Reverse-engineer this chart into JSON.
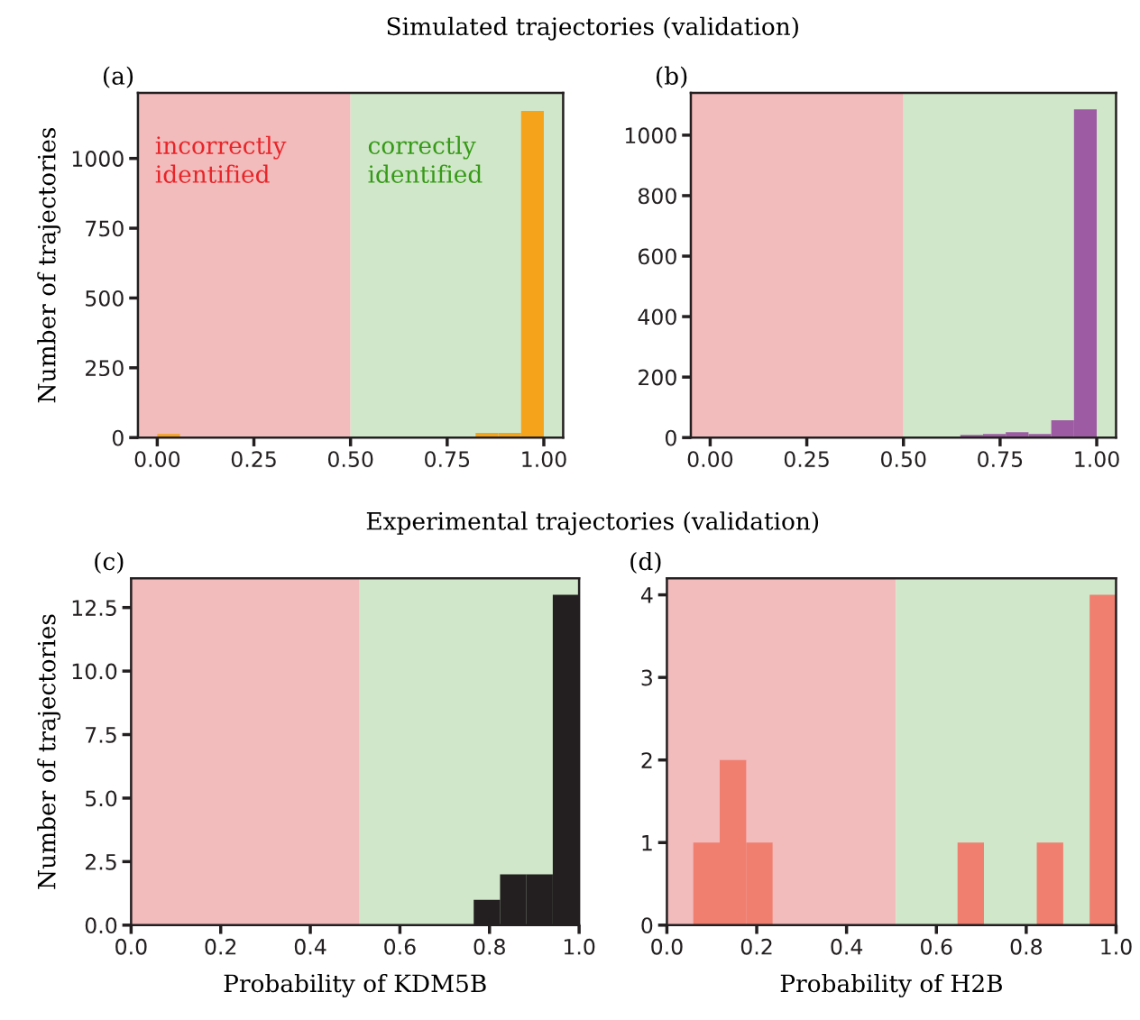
{
  "chart_data": [
    {
      "type": "histogram",
      "title": "Simulated trajectories (validation)",
      "subtitle": "(a)",
      "ylabel": "Number of trajectories",
      "bins": [
        0,
        0.0588,
        0.1176,
        0.1765,
        0.2353,
        0.2941,
        0.3529,
        0.4118,
        0.4706,
        0.5294,
        0.5882,
        0.6471,
        0.7059,
        0.7647,
        0.8235,
        0.8824,
        0.9412,
        1
      ],
      "values": [
        13,
        2,
        0,
        0,
        0,
        0,
        0,
        2,
        2,
        0,
        0,
        0,
        0,
        2,
        17,
        17,
        1170
      ],
      "color": "#f5a31b",
      "xlim": [
        -0.05,
        1.05
      ],
      "xticks": [
        {
          "value": 0,
          "label": "0.00"
        },
        {
          "value": 0.25,
          "label": "0.25"
        },
        {
          "value": 0.5,
          "label": "0.50"
        },
        {
          "value": 0.75,
          "label": "0.75"
        },
        {
          "value": 1,
          "label": "1.00"
        }
      ],
      "ylim": [
        0,
        1235
      ],
      "yticks": [
        0,
        250,
        500,
        750,
        1000
      ],
      "bands": [
        {
          "axis": "x",
          "from": -0.05,
          "to": 0.5,
          "color": "#f2bbbc",
          "label": "incorrectly\nidentified"
        },
        {
          "axis": "x",
          "from": 0.5,
          "to": 1.05,
          "color": "#d0e7c9",
          "label": "correctly\nidentified"
        }
      ]
    },
    {
      "type": "histogram",
      "subtitle": "(b)",
      "bins": [
        0,
        0.0588,
        0.1176,
        0.1765,
        0.2353,
        0.2941,
        0.3529,
        0.4118,
        0.4706,
        0.5294,
        0.5882,
        0.6471,
        0.7059,
        0.7647,
        0.8235,
        0.8824,
        0.9412,
        1
      ],
      "values": [
        0,
        0,
        0,
        0,
        2,
        2,
        2,
        2,
        2,
        2,
        2,
        9,
        12,
        18,
        12,
        57,
        1085
      ],
      "color": "#9c5ba3",
      "xlim": [
        -0.05,
        1.05
      ],
      "xticks": [
        {
          "value": 0,
          "label": "0.00"
        },
        {
          "value": 0.25,
          "label": "0.25"
        },
        {
          "value": 0.5,
          "label": "0.50"
        },
        {
          "value": 0.75,
          "label": "0.75"
        },
        {
          "value": 1,
          "label": "1.00"
        }
      ],
      "ylim": [
        0,
        1140
      ],
      "yticks": [
        0,
        200,
        400,
        600,
        800,
        1000
      ],
      "bands": [
        {
          "axis": "x",
          "from": -0.05,
          "to": 0.5,
          "color": "#f2bbbc"
        },
        {
          "axis": "x",
          "from": 0.5,
          "to": 1.05,
          "color": "#d0e7c9"
        }
      ]
    },
    {
      "type": "histogram",
      "title": "Experimental trajectories (validation)",
      "subtitle": "(c)",
      "ylabel": "Number of trajectories",
      "xlabel": "Probability of KDM5B",
      "bins": [
        0,
        0.0588,
        0.1176,
        0.1765,
        0.2353,
        0.2941,
        0.3529,
        0.4118,
        0.4706,
        0.5294,
        0.5882,
        0.6471,
        0.7059,
        0.7647,
        0.8235,
        0.8824,
        0.9412,
        1
      ],
      "values": [
        0,
        0,
        0,
        0,
        0,
        0,
        0,
        0,
        0,
        0,
        0,
        0,
        0,
        1,
        2,
        2,
        13
      ],
      "color": "#231f20",
      "xlim": [
        0,
        1
      ],
      "xticks": [
        {
          "value": 0,
          "label": "0.0"
        },
        {
          "value": 0.2,
          "label": "0.2"
        },
        {
          "value": 0.4,
          "label": "0.4"
        },
        {
          "value": 0.6,
          "label": "0.6"
        },
        {
          "value": 0.8,
          "label": "0.8"
        },
        {
          "value": 1,
          "label": "1.0"
        }
      ],
      "ylim": [
        0,
        13.65
      ],
      "yticks": [
        {
          "value": 0,
          "label": "0.0"
        },
        2.5,
        {
          "value": 5,
          "label": "5.0"
        },
        7.5,
        {
          "value": 10,
          "label": "10.0"
        },
        12.5
      ],
      "bands": [
        {
          "axis": "x",
          "from": 0,
          "to": 0.51,
          "color": "#f2bbbc"
        },
        {
          "axis": "x",
          "from": 0.51,
          "to": 1,
          "color": "#d0e7c9"
        }
      ]
    },
    {
      "type": "histogram",
      "subtitle": "(d)",
      "xlabel": "Probability of H2B",
      "bins": [
        0,
        0.0588,
        0.1176,
        0.1765,
        0.2353,
        0.2941,
        0.3529,
        0.4118,
        0.4706,
        0.5294,
        0.5882,
        0.6471,
        0.7059,
        0.7647,
        0.8235,
        0.8824,
        0.9412,
        1
      ],
      "values": [
        0,
        1,
        2,
        1,
        0,
        0,
        0,
        0,
        0,
        0,
        0,
        1,
        0,
        0,
        1,
        0,
        4
      ],
      "color": "#f07f70",
      "xlim": [
        0,
        1
      ],
      "xticks": [
        {
          "value": 0,
          "label": "0.0"
        },
        {
          "value": 0.2,
          "label": "0.2"
        },
        {
          "value": 0.4,
          "label": "0.4"
        },
        {
          "value": 0.6,
          "label": "0.6"
        },
        {
          "value": 0.8,
          "label": "0.8"
        },
        {
          "value": 1,
          "label": "1.0"
        }
      ],
      "ylim": [
        0,
        4.2
      ],
      "yticks": [
        0,
        1,
        2,
        3,
        4
      ],
      "bands": [
        {
          "axis": "x",
          "from": 0,
          "to": 0.51,
          "color": "#f2bbbc"
        },
        {
          "axis": "x",
          "from": 0.51,
          "to": 1,
          "color": "#d0e7c9"
        }
      ]
    }
  ]
}
